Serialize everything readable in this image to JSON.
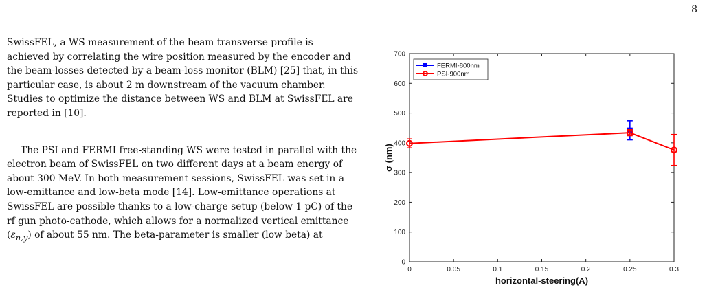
{
  "page": {
    "number": "8"
  },
  "paragraphs": {
    "p1": "SwissFEL, a WS measurement of the beam transverse profile is achieved by correlating the wire position measured by the encoder and the beam-losses detected by a beam-loss monitor (BLM) [25] that, in this particular case, is about 2 m downstream of the vacuum chamber. Studies to optimize the distance between WS and BLM at SwissFEL are reported in [10].",
    "p2_before": "The PSI and FERMI free-standing WS were tested in parallel with the electron beam of SwissFEL on two different days at a beam energy of about 300 MeV. In both measurement sessions, SwissFEL was set in a low-emittance and low-beta mode [14]. Low-emittance operations at SwissFEL are possible thanks to a low-charge setup (below 1 pC) of the rf gun photo-cathode, which allows for a normalized vertical emittance (",
    "p2_math": "ε",
    "p2_math_sub": "n,y",
    "p2_after": ") of about 55 nm. The beta-parameter is smaller (low beta) at"
  },
  "chart_data": {
    "type": "line",
    "xlabel": "horizontal-steering(A)",
    "ylabel": "σ (nm)",
    "xlim": [
      0,
      0.3
    ],
    "ylim": [
      0,
      700
    ],
    "xticks": [
      "0",
      "0.05",
      "0.1",
      "0.15",
      "0.2",
      "0.25",
      "0.3"
    ],
    "yticks": [
      "0",
      "100",
      "200",
      "300",
      "400",
      "500",
      "600",
      "700"
    ],
    "legend_position": "top-left",
    "grid": false,
    "series": [
      {
        "name": "FERMI-800nm",
        "color": "#0000ff",
        "marker": "square",
        "points": [
          {
            "x": 0.25,
            "y": 442,
            "err": 32
          }
        ]
      },
      {
        "name": "PSI-900nm",
        "color": "#ff0000",
        "marker": "circle",
        "points": [
          {
            "x": 0,
            "y": 398,
            "err": 15
          },
          {
            "x": 0.25,
            "y": 434,
            "err": 10
          },
          {
            "x": 0.3,
            "y": 376,
            "err": 52
          }
        ]
      }
    ]
  }
}
